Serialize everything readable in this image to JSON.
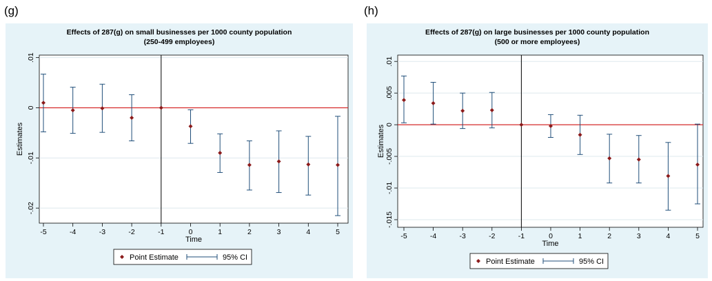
{
  "panels": [
    {
      "label": "(g)"
    },
    {
      "label": "(h)"
    }
  ],
  "colors": {
    "outer_bg": "#e6f3f8",
    "plot_bg": "#ffffff",
    "point": "#8b1a1a",
    "ci": "#1f4e79",
    "zero_line": "#d62a2a",
    "vline": "#000000",
    "grid": "#dde8ee"
  },
  "chart_data": [
    {
      "type": "scatter",
      "title": "Effects of 287(g) on small businesses per 1000 county population",
      "subtitle": "(250-499 employees)",
      "xlabel": "Time",
      "ylabel": "Estimates",
      "x": [
        -5,
        -4,
        -3,
        -2,
        -1,
        0,
        1,
        2,
        3,
        4,
        5
      ],
      "xticks": [
        "-5",
        "-4",
        "-3",
        "-2",
        "-1",
        "0",
        "1",
        "2",
        "3",
        "4",
        "5"
      ],
      "ylim": [
        -0.023,
        0.0105
      ],
      "yticks": [
        0.01,
        0,
        -0.01,
        -0.02
      ],
      "ytick_labels": [
        ".01",
        "0",
        "-.01",
        "-.02"
      ],
      "reference_y": 0,
      "reference_x": -1,
      "grid": true,
      "legend_position": "bottom",
      "series": [
        {
          "name": "Point Estimate",
          "values": [
            0.001,
            -0.0005,
            -0.0001,
            -0.002,
            0,
            -0.0037,
            -0.009,
            -0.0114,
            -0.0107,
            -0.0113,
            -0.0114
          ]
        },
        {
          "name": "95% CI",
          "lower": [
            -0.0048,
            -0.0051,
            -0.0049,
            -0.0066,
            0,
            -0.0071,
            -0.0129,
            -0.0164,
            -0.0169,
            -0.0174,
            -0.0215
          ],
          "upper": [
            0.0067,
            0.0041,
            0.0047,
            0.0026,
            0,
            -0.0004,
            -0.0052,
            -0.0066,
            -0.0046,
            -0.0057,
            -0.0017
          ]
        }
      ]
    },
    {
      "type": "scatter",
      "title": "Effects of 287(g) on large businesses per 1000 county population",
      "subtitle": "(500 or more employees)",
      "xlabel": "Time",
      "ylabel": "Estimates",
      "x": [
        -5,
        -4,
        -3,
        -2,
        -1,
        0,
        1,
        2,
        3,
        4,
        5
      ],
      "xticks": [
        "-5",
        "-4",
        "-3",
        "-2",
        "-1",
        "0",
        "1",
        "2",
        "3",
        "4",
        "5"
      ],
      "ylim": [
        -0.0162,
        0.011
      ],
      "yticks": [
        0.01,
        0.005,
        0,
        -0.005,
        -0.01,
        -0.015
      ],
      "ytick_labels": [
        ".01",
        ".005",
        "0",
        "-.005",
        "-.01",
        "-.015"
      ],
      "reference_y": 0,
      "reference_x": -1,
      "grid": true,
      "legend_position": "bottom",
      "series": [
        {
          "name": "Point Estimate",
          "values": [
            0.0039,
            0.0034,
            0.0022,
            0.0023,
            0,
            -0.0002,
            -0.0016,
            -0.0053,
            -0.0055,
            -0.0081,
            -0.0063
          ]
        },
        {
          "name": "95% CI",
          "lower": [
            0.0003,
            0.0001,
            -0.0006,
            -0.0005,
            0,
            -0.002,
            -0.0047,
            -0.0092,
            -0.0092,
            -0.0135,
            -0.0125
          ],
          "upper": [
            0.0077,
            0.0067,
            0.005,
            0.0051,
            0,
            0.0016,
            0.0015,
            -0.0015,
            -0.0017,
            -0.0028,
            0.0001
          ]
        }
      ]
    }
  ]
}
